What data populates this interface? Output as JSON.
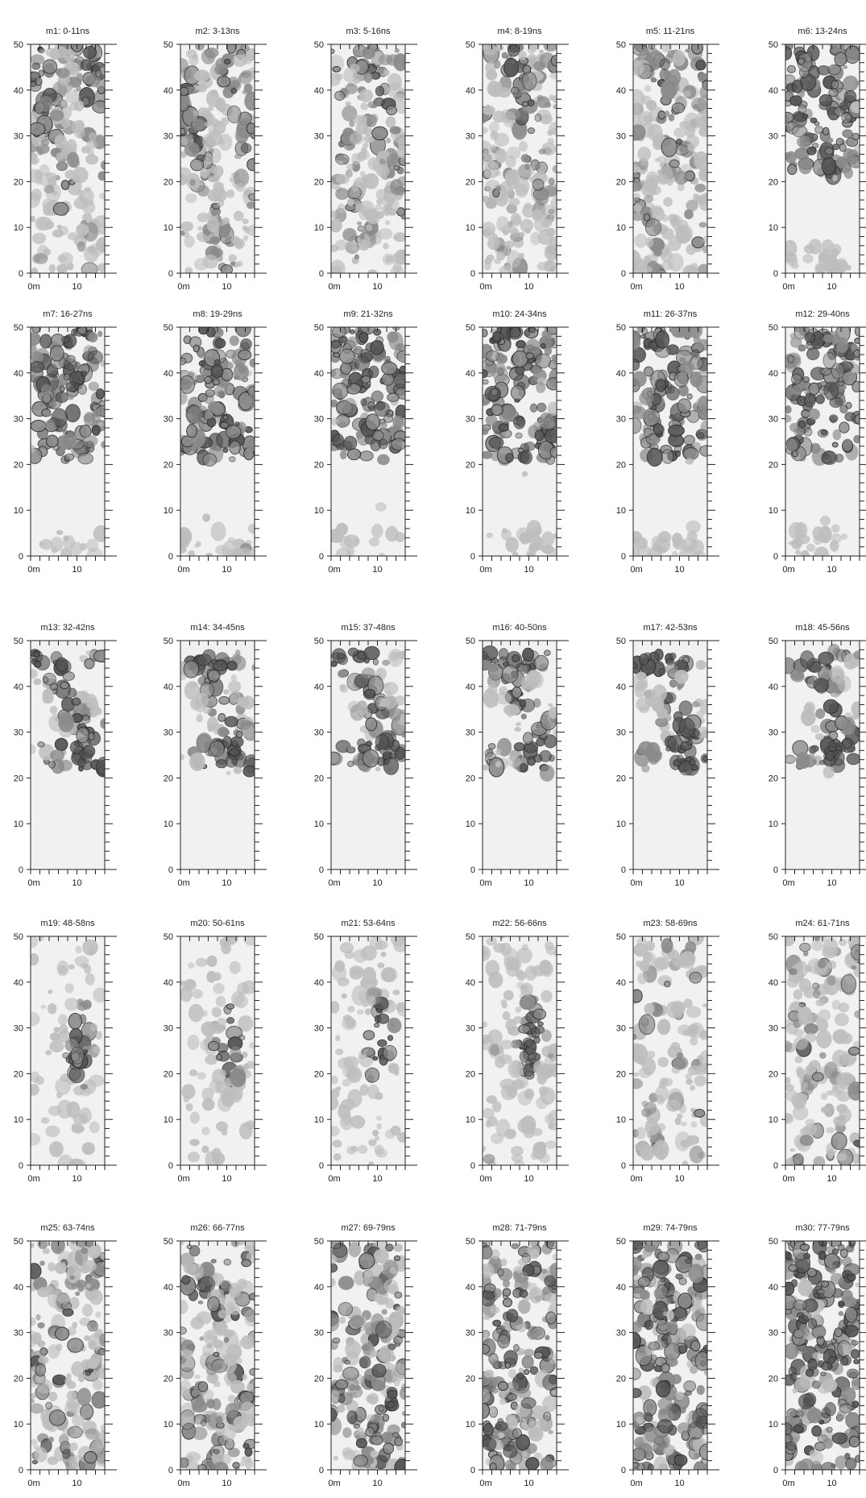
{
  "figure": {
    "panels": [
      {
        "title": "m1: 0-11ns"
      },
      {
        "title": "m2: 3-13ns"
      },
      {
        "title": "m3: 5-16ns"
      },
      {
        "title": "m4: 8-19ns"
      },
      {
        "title": "m5: 11-21ns"
      },
      {
        "title": "m6: 13-24ns"
      },
      {
        "title": "m7: 16-27ns"
      },
      {
        "title": "m8: 19-29ns"
      },
      {
        "title": "m9: 21-32ns"
      },
      {
        "title": "m10: 24-34ns"
      },
      {
        "title": "m11: 26-37ns"
      },
      {
        "title": "m12: 29-40ns"
      },
      {
        "title": "m13: 32-42ns"
      },
      {
        "title": "m14: 34-45ns"
      },
      {
        "title": "m15: 37-48ns"
      },
      {
        "title": "m16: 40-50ns"
      },
      {
        "title": "m17: 42-53ns"
      },
      {
        "title": "m18: 45-56ns"
      },
      {
        "title": "m19: 48-58ns"
      },
      {
        "title": "m20: 50-61ns"
      },
      {
        "title": "m21: 53-64ns"
      },
      {
        "title": "m22: 56-66ns"
      },
      {
        "title": "m23: 58-69ns"
      },
      {
        "title": "m24: 61-71ns"
      },
      {
        "title": "m25: 63-74ns"
      },
      {
        "title": "m26: 66-77ns"
      },
      {
        "title": "m27: 69-79ns"
      },
      {
        "title": "m28: 71-79ns"
      },
      {
        "title": "m29: 74-79ns"
      },
      {
        "title": "m30: 77-79ns"
      }
    ],
    "y_ticks": [
      "0",
      "10",
      "20",
      "30",
      "40",
      "50"
    ],
    "x_ticks": [
      "0m",
      "10"
    ],
    "y_range": [
      0,
      50
    ],
    "x_range": [
      0,
      16
    ],
    "colors": {
      "background": "#ffffff",
      "map_base": "#f1f1f1",
      "anomaly_light": "#bdbdbd",
      "anomaly_mid": "#8a8a8a",
      "anomaly_dark": "#555555",
      "contour": "#2b2b2b",
      "axis": "#222222",
      "text": "#222222"
    }
  }
}
